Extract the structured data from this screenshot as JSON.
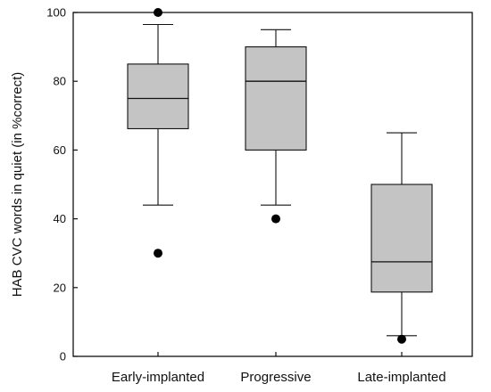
{
  "chart_data": {
    "type": "box",
    "ylabel": "HAB CVC words in quiet (in %correct)",
    "xlabel": "",
    "ylim": [
      0,
      100
    ],
    "yticks": [
      0,
      20,
      40,
      60,
      80,
      100
    ],
    "grid": false,
    "legend": "none",
    "box_color": "#c4c4c4",
    "line_color": "#111111",
    "categories": [
      "Early-implanted",
      "Progressive",
      "Late-implanted"
    ],
    "boxes": [
      {
        "category": "Early-implanted",
        "whisker_low": 44,
        "q1": 66.2,
        "median": 75,
        "q3": 85,
        "whisker_high": 96.5,
        "outliers": [
          100,
          30
        ]
      },
      {
        "category": "Progressive",
        "whisker_low": 44,
        "q1": 60,
        "median": 80,
        "q3": 90,
        "whisker_high": 95,
        "outliers": [
          40
        ]
      },
      {
        "category": "Late-implanted",
        "whisker_low": 6,
        "q1": 18.7,
        "median": 27.5,
        "q3": 50,
        "whisker_high": 65,
        "outliers": [
          5
        ]
      }
    ]
  }
}
